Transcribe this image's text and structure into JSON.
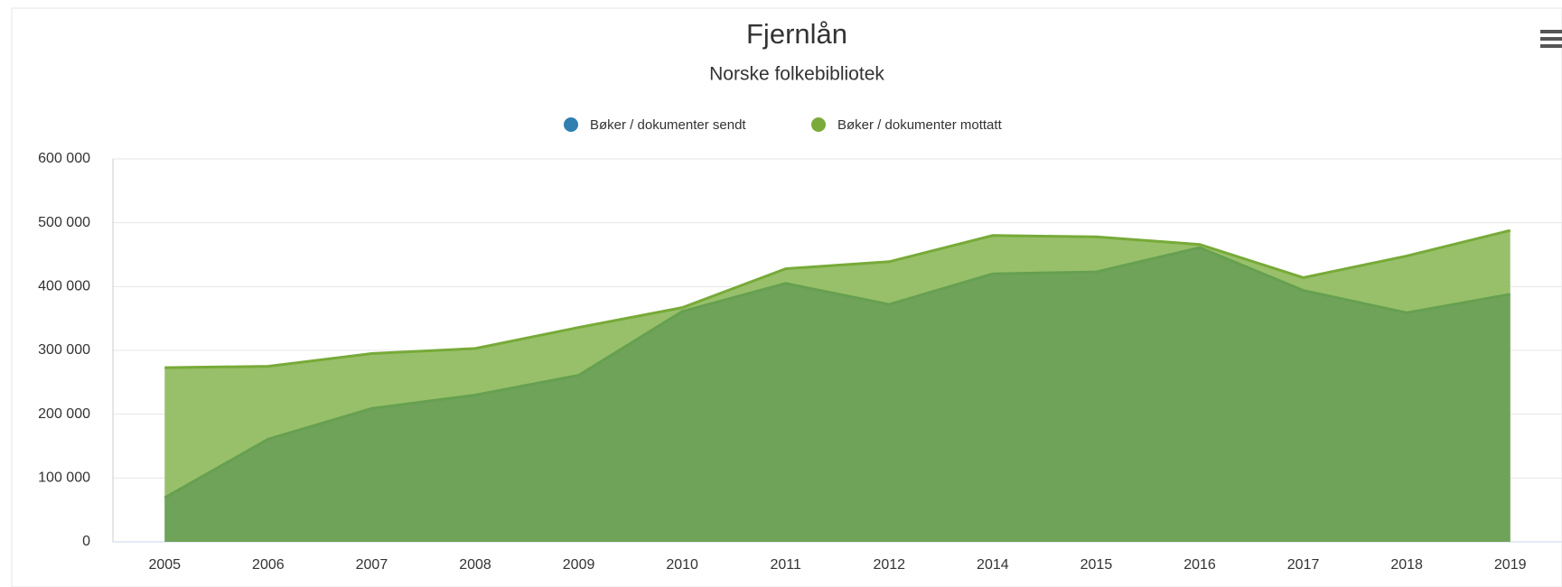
{
  "chart_data": {
    "type": "area",
    "title": "Fjernlån",
    "subtitle": "Norske folkebibliotek",
    "categories": [
      "2005",
      "2006",
      "2007",
      "2008",
      "2009",
      "2010",
      "2011",
      "2012",
      "2014",
      "2015",
      "2016",
      "2017",
      "2018",
      "2019"
    ],
    "series": [
      {
        "name": "Bøker / dokumenter sendt",
        "color": "#2f7fb0",
        "area_color": "#6fa35a",
        "line_color": "#66a050",
        "values": [
          69000,
          161000,
          209000,
          230000,
          261000,
          361000,
          405000,
          372000,
          420000,
          423000,
          461000,
          394000,
          359000,
          388000
        ]
      },
      {
        "name": "Bøker / dokumenter mottatt",
        "color": "#7aab3a",
        "area_color": "#98c06a",
        "line_color": "#77aa38",
        "values": [
          273000,
          275000,
          295000,
          303000,
          336000,
          367000,
          428000,
          439000,
          480000,
          478000,
          466000,
          414000,
          448000,
          488000
        ]
      }
    ],
    "ylim": [
      0,
      600000
    ],
    "yticks": [
      0,
      {
        "value": 100000,
        "label": "100 000"
      },
      {
        "value": 200000,
        "label": "200 000"
      },
      {
        "value": 300000,
        "label": "300 000"
      },
      {
        "value": 400000,
        "label": "400 000"
      },
      {
        "value": 500000,
        "label": "500 000"
      },
      {
        "value": 600000,
        "label": "600 000"
      }
    ],
    "grid": true,
    "legend": "top"
  }
}
